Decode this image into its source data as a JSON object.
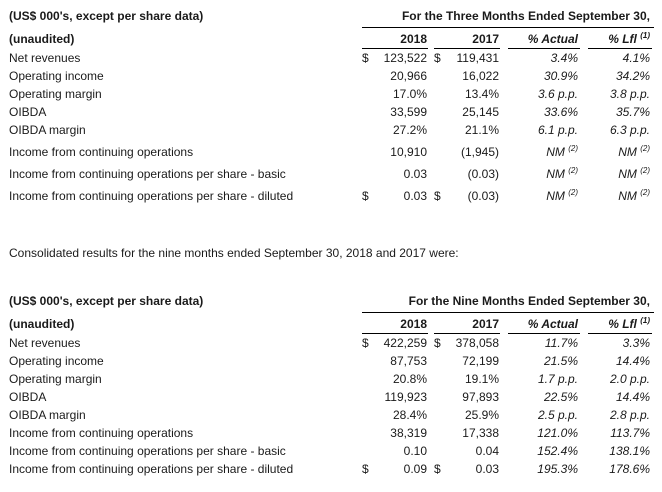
{
  "q3": {
    "units_label": "(US$ 000's, except per share data)",
    "unaudited_label": "(unaudited)",
    "period_title": "For the Three Months Ended September 30,",
    "col_2018": "2018",
    "col_2017": "2017",
    "col_actual": "% Actual",
    "col_lfl": "% Lfl",
    "col_lfl_sup": "(1)",
    "rows": [
      {
        "label": "Net revenues",
        "d1": "$",
        "v1": "123,522",
        "d2": "$",
        "v2": "119,431",
        "v3": "3.4%",
        "v3s": "",
        "v4": "4.1%",
        "v4s": ""
      },
      {
        "label": "Operating income",
        "d1": "",
        "v1": "20,966",
        "d2": "",
        "v2": "16,022",
        "v3": "30.9%",
        "v3s": "",
        "v4": "34.2%",
        "v4s": ""
      },
      {
        "label": "Operating margin",
        "d1": "",
        "v1": "17.0%",
        "d2": "",
        "v2": "13.4%",
        "v3": "3.6 p.p.",
        "v3s": "",
        "v4": "3.8 p.p.",
        "v4s": ""
      },
      {
        "label": "OIBDA",
        "d1": "",
        "v1": "33,599",
        "d2": "",
        "v2": "25,145",
        "v3": "33.6%",
        "v3s": "",
        "v4": "35.7%",
        "v4s": ""
      },
      {
        "label": "OIBDA margin",
        "d1": "",
        "v1": "27.2%",
        "d2": "",
        "v2": "21.1%",
        "v3": "6.1 p.p.",
        "v3s": "",
        "v4": "6.3 p.p.",
        "v4s": ""
      },
      {
        "label": "Income from continuing operations",
        "d1": "",
        "v1": "10,910",
        "d2": "",
        "v2": "(1,945)",
        "v3": "NM",
        "v3s": "(2)",
        "v4": "NM",
        "v4s": "(2)"
      },
      {
        "label": "Income from continuing operations per share - basic",
        "d1": "",
        "v1": "0.03",
        "d2": "",
        "v2": "(0.03)",
        "v3": "NM",
        "v3s": "(2)",
        "v4": "NM",
        "v4s": "(2)"
      },
      {
        "label": "Income from continuing operations per share - diluted",
        "d1": "$",
        "v1": "0.03",
        "d2": "$",
        "v2": "(0.03)",
        "v3": "NM",
        "v3s": "(2)",
        "v4": "NM",
        "v4s": "(2)"
      }
    ]
  },
  "intro_text": "Consolidated results for the nine months ended September 30, 2018 and 2017 were:",
  "nine": {
    "units_label": "(US$ 000's, except per share data)",
    "unaudited_label": "(unaudited)",
    "period_title": "For the Nine Months Ended September 30,",
    "col_2018": "2018",
    "col_2017": "2017",
    "col_actual": "% Actual",
    "col_lfl": "% Lfl",
    "col_lfl_sup": "(1)",
    "rows": [
      {
        "label": "Net revenues",
        "d1": "$",
        "v1": "422,259",
        "d2": "$",
        "v2": "378,058",
        "v3": "11.7%",
        "v4": "3.3%"
      },
      {
        "label": "Operating income",
        "d1": "",
        "v1": "87,753",
        "d2": "",
        "v2": "72,199",
        "v3": "21.5%",
        "v4": "14.4%"
      },
      {
        "label": "Operating margin",
        "d1": "",
        "v1": "20.8%",
        "d2": "",
        "v2": "19.1%",
        "v3": "1.7 p.p.",
        "v4": "2.0 p.p."
      },
      {
        "label": "OIBDA",
        "d1": "",
        "v1": "119,923",
        "d2": "",
        "v2": "97,893",
        "v3": "22.5%",
        "v4": "14.4%"
      },
      {
        "label": "OIBDA margin",
        "d1": "",
        "v1": "28.4%",
        "d2": "",
        "v2": "25.9%",
        "v3": "2.5 p.p.",
        "v4": "2.8 p.p."
      },
      {
        "label": "Income from continuing operations",
        "d1": "",
        "v1": "38,319",
        "d2": "",
        "v2": "17,338",
        "v3": "121.0%",
        "v4": "113.7%"
      },
      {
        "label": "Income from continuing operations per share - basic",
        "d1": "",
        "v1": "0.10",
        "d2": "",
        "v2": "0.04",
        "v3": "152.4%",
        "v4": "138.1%"
      },
      {
        "label": "Income from continuing operations per share - diluted",
        "d1": "$",
        "v1": "0.09",
        "d2": "$",
        "v2": "0.03",
        "v3": "195.3%",
        "v4": "178.6%"
      }
    ]
  }
}
